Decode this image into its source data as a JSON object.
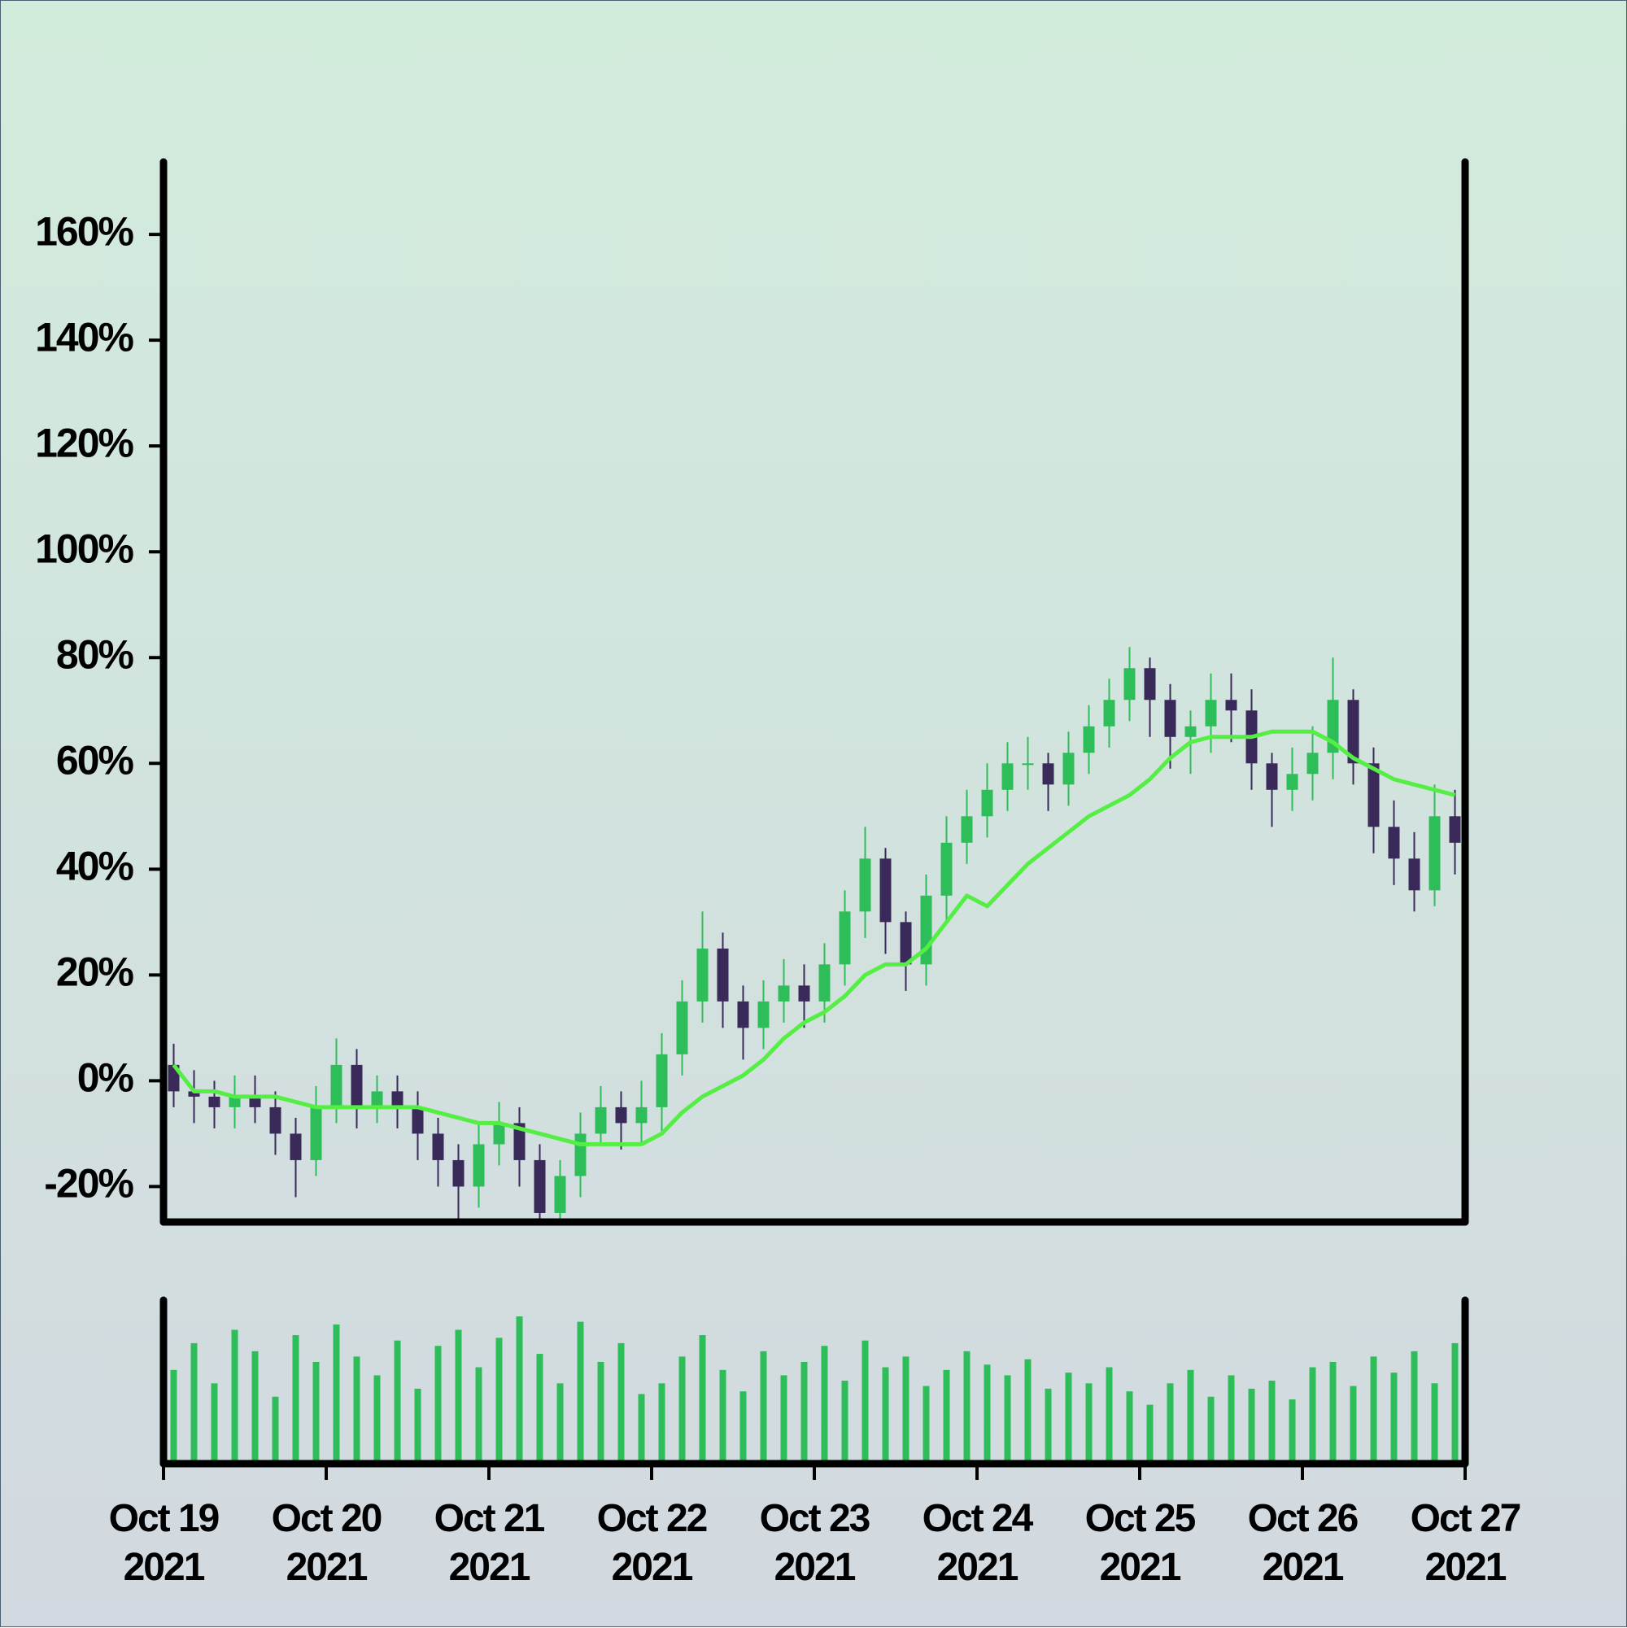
{
  "chart_data": {
    "type": "candlestick",
    "xlim": [
      "2021-10-19",
      "2021-10-27"
    ],
    "xticks": [
      {
        "value": "2021-10-19",
        "label": "Oct 19\n2021"
      },
      {
        "value": "2021-10-20",
        "label": "Oct 20\n2021"
      },
      {
        "value": "2021-10-21",
        "label": "Oct 21\n2021"
      },
      {
        "value": "2021-10-22",
        "label": "Oct 22\n2021"
      },
      {
        "value": "2021-10-23",
        "label": "Oct 23\n2021"
      },
      {
        "value": "2021-10-24",
        "label": "Oct 24\n2021"
      },
      {
        "value": "2021-10-25",
        "label": "Oct 25\n2021"
      },
      {
        "value": "2021-10-26",
        "label": "Oct 26\n2021"
      },
      {
        "value": "2021-10-27",
        "label": "Oct 27\n2021"
      }
    ],
    "ylim": [
      -26.7,
      173.7
    ],
    "yticks": [
      {
        "value": -20,
        "label": "-20%"
      },
      {
        "value": 0,
        "label": "0%"
      },
      {
        "value": 20,
        "label": "20%"
      },
      {
        "value": 40,
        "label": "40%"
      },
      {
        "value": 60,
        "label": "60%"
      },
      {
        "value": 80,
        "label": "80%"
      },
      {
        "value": 100,
        "label": "100%"
      },
      {
        "value": 120,
        "label": "120%"
      },
      {
        "value": 140,
        "label": "140%"
      },
      {
        "value": 160,
        "label": "160%"
      }
    ],
    "up_color": "#2dbe5a",
    "down_color": "#3a2a5a",
    "ma_color": "#55ee44",
    "volume_color": "#2dbe5a",
    "open": [
      3,
      -2,
      -3,
      -5,
      -3,
      -5,
      -10,
      -15,
      -5,
      3,
      -5,
      -2,
      -5,
      -10,
      -15,
      -20,
      -12,
      -8,
      -15,
      -25,
      -18,
      -10,
      -5,
      -8,
      -5,
      5,
      15,
      25,
      15,
      10,
      15,
      18,
      15,
      22,
      32,
      42,
      30,
      22,
      35,
      45,
      50,
      55,
      60,
      60,
      56,
      62,
      67,
      72,
      78,
      72,
      65,
      67,
      72,
      70,
      60,
      55,
      58,
      62,
      72,
      60,
      48,
      42,
      36,
      50
    ],
    "high": [
      7,
      2,
      0,
      1,
      1,
      -2,
      -7,
      -1,
      8,
      6,
      1,
      1,
      -2,
      -7,
      -12,
      -8,
      -4,
      -5,
      -12,
      -15,
      -6,
      -1,
      -2,
      0,
      9,
      19,
      32,
      28,
      18,
      19,
      23,
      22,
      26,
      36,
      48,
      44,
      32,
      39,
      50,
      55,
      60,
      64,
      65,
      62,
      66,
      71,
      76,
      82,
      80,
      75,
      70,
      77,
      77,
      74,
      62,
      63,
      67,
      80,
      74,
      63,
      53,
      47,
      56,
      55
    ],
    "low": [
      -5,
      -8,
      -9,
      -9,
      -8,
      -14,
      -22,
      -18,
      -8,
      -9,
      -8,
      -9,
      -15,
      -20,
      -26,
      -24,
      -16,
      -20,
      -32,
      -29,
      -22,
      -12,
      -13,
      -12,
      -10,
      1,
      11,
      10,
      4,
      6,
      11,
      10,
      11,
      18,
      27,
      24,
      17,
      18,
      30,
      41,
      46,
      51,
      55,
      51,
      52,
      58,
      63,
      68,
      65,
      59,
      58,
      62,
      64,
      55,
      48,
      51,
      53,
      57,
      56,
      43,
      37,
      32,
      33,
      39
    ],
    "close": [
      -2,
      -3,
      -5,
      -3,
      -5,
      -10,
      -15,
      -5,
      3,
      -5,
      -2,
      -5,
      -10,
      -15,
      -20,
      -12,
      -8,
      -15,
      -25,
      -18,
      -10,
      -5,
      -8,
      -5,
      5,
      15,
      25,
      15,
      10,
      15,
      18,
      15,
      22,
      32,
      42,
      30,
      22,
      35,
      45,
      50,
      55,
      60,
      60,
      56,
      62,
      67,
      72,
      78,
      72,
      65,
      67,
      72,
      70,
      60,
      55,
      58,
      62,
      72,
      60,
      48,
      42,
      36,
      50,
      45
    ],
    "ma_values": [
      3,
      -2,
      -2,
      -3,
      -3,
      -3,
      -4,
      -5,
      -5,
      -5,
      -5,
      -5,
      -5,
      -6,
      -7,
      -8,
      -8,
      -9,
      -10,
      -11,
      -12,
      -12,
      -12,
      -12,
      -10,
      -6,
      -3,
      -1,
      1,
      4,
      8,
      11,
      13,
      16,
      20,
      22,
      22,
      25,
      30,
      35,
      33,
      37,
      41,
      44,
      47,
      50,
      52,
      54,
      57,
      61,
      64,
      65,
      65,
      65,
      66,
      66,
      66,
      64,
      61,
      59,
      57,
      56,
      55,
      54
    ],
    "volume": [
      35,
      45,
      30,
      50,
      42,
      25,
      48,
      38,
      52,
      40,
      33,
      46,
      28,
      44,
      50,
      36,
      47,
      55,
      41,
      30,
      53,
      38,
      45,
      26,
      30,
      40,
      48,
      35,
      27,
      42,
      33,
      38,
      44,
      31,
      46,
      36,
      40,
      29,
      35,
      42,
      37,
      33,
      39,
      28,
      34,
      30,
      36,
      27,
      22,
      30,
      35,
      25,
      33,
      28,
      31,
      24,
      36,
      38,
      29,
      40,
      34,
      42,
      30,
      45
    ]
  }
}
